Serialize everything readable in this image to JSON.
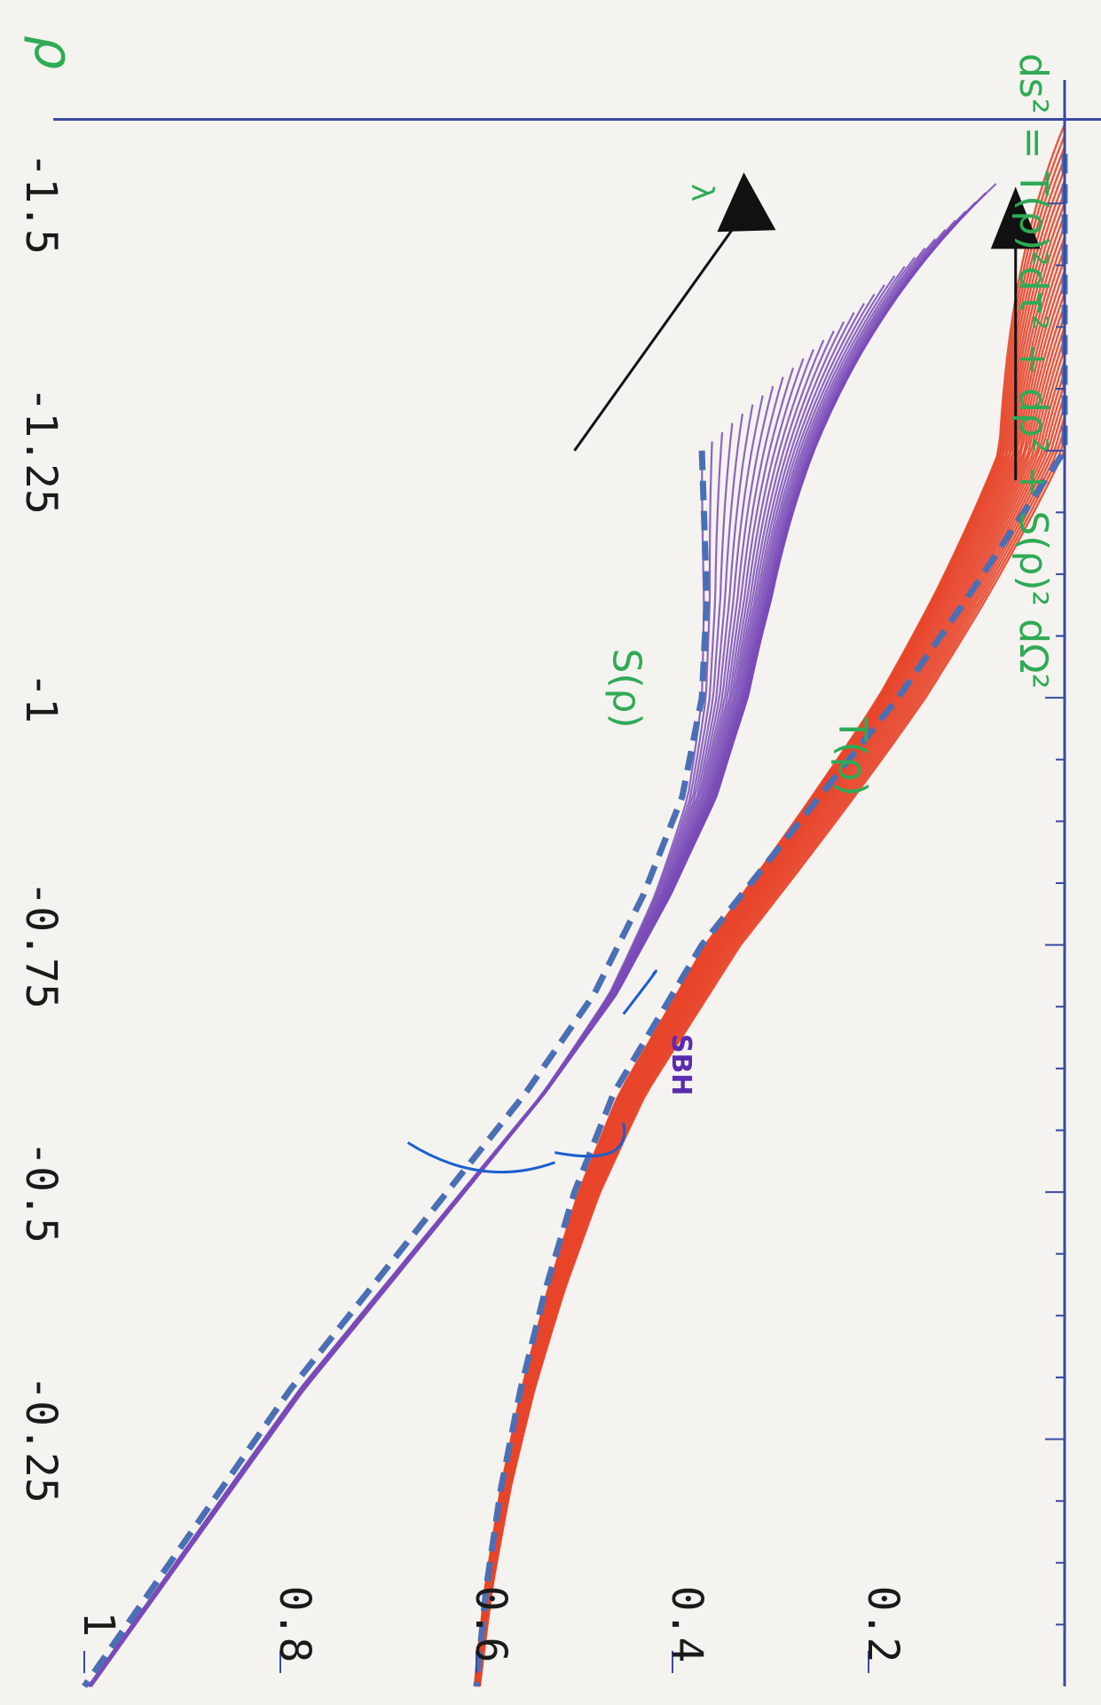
{
  "chart_data": {
    "type": "line",
    "orientation": "rotated 90 degrees clockwise",
    "xlabel": "ρ",
    "ylabel": "",
    "xlim": [
      -1.55,
      0.0
    ],
    "ylim": [
      0.0,
      1.0
    ],
    "x_ticks": [
      "-1.5",
      "-1.25",
      "-1",
      "-0.75",
      "-0.5",
      "-0.25"
    ],
    "y_ticks": [
      "0.2",
      "0.4",
      "0.6",
      "0.8",
      "1"
    ],
    "series": [
      {
        "name": "S(ρ)",
        "color": "#7a4bb8",
        "family": "lambda-deformed",
        "count": 30
      },
      {
        "name": "T(ρ)",
        "color": "#e8452a",
        "family": "lambda-deformed",
        "count": 30
      }
    ],
    "limit_curves": {
      "color": "#4a6fb5",
      "style": "dashed",
      "S": {
        "x": [
          -1.25,
          -1.1,
          -1.0,
          -0.9,
          -0.8,
          -0.75,
          -0.7,
          -0.6,
          -0.5,
          -0.4,
          -0.3,
          -0.2,
          -0.1,
          0.0
        ],
        "y": [
          0.37,
          0.365,
          0.37,
          0.39,
          0.43,
          0.455,
          0.48,
          0.55,
          0.63,
          0.71,
          0.79,
          0.86,
          0.93,
          1.0
        ]
      },
      "T": {
        "x": [
          -1.55,
          -1.4,
          -1.25,
          -1.1,
          -1.0,
          -0.9,
          -0.8,
          -0.75,
          -0.7,
          -0.6,
          -0.5,
          -0.4,
          -0.3,
          -0.2,
          -0.1,
          0.0
        ],
        "y": [
          0.0,
          0.0,
          0.0,
          0.1,
          0.17,
          0.25,
          0.33,
          0.37,
          0.4,
          0.46,
          0.5,
          0.53,
          0.555,
          0.575,
          0.59,
          0.6
        ]
      }
    },
    "annotations": {
      "equation": "ds² = T(ρ)²dτ² + dρ² + S(ρ)² dΩ²",
      "s_label": "S(ρ)",
      "t_label": "T(ρ)",
      "lambda_label": "λ",
      "sbh_label": "SBH"
    }
  }
}
